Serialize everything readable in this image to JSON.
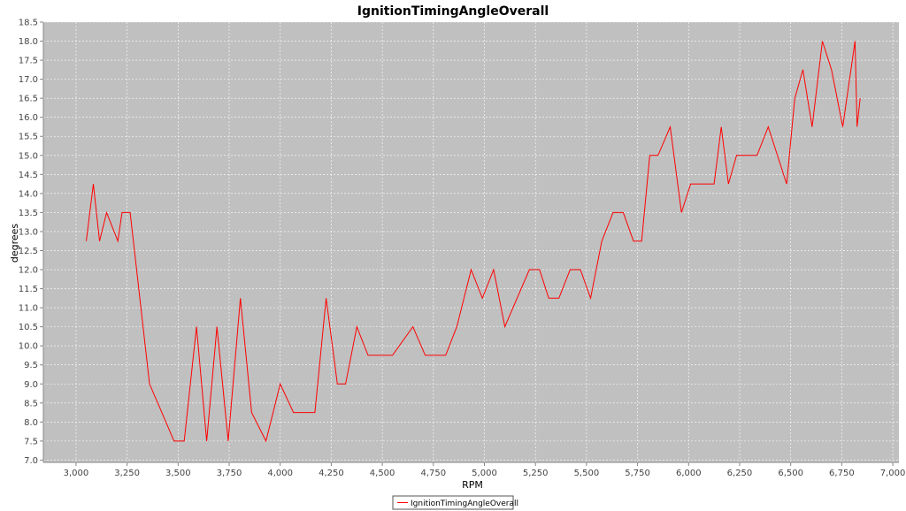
{
  "chart_data": {
    "type": "line",
    "title": "IgnitionTimingAngleOverall",
    "xlabel": "RPM",
    "ylabel": "degrees",
    "xlim": [
      2840,
      7030
    ],
    "ylim": [
      6.94,
      18.5
    ],
    "x_ticks": [
      3000,
      3250,
      3500,
      3750,
      4000,
      4250,
      4500,
      4750,
      5000,
      5250,
      5500,
      5750,
      6000,
      6250,
      6500,
      6750,
      7000
    ],
    "x_tick_labels": [
      "3,000",
      "3,250",
      "3,500",
      "3,750",
      "4,000",
      "4,250",
      "4,500",
      "4,750",
      "5,000",
      "5,250",
      "5,500",
      "5,750",
      "6,000",
      "6,250",
      "6,500",
      "6,750",
      "7,000"
    ],
    "y_ticks": [
      7.0,
      7.5,
      8.0,
      8.5,
      9.0,
      9.5,
      10.0,
      10.5,
      11.0,
      11.5,
      12.0,
      12.5,
      13.0,
      13.5,
      14.0,
      14.5,
      15.0,
      15.5,
      16.0,
      16.5,
      17.0,
      17.5,
      18.0,
      18.5
    ],
    "y_tick_labels": [
      "7.0",
      "7.5",
      "8.0",
      "8.5",
      "9.0",
      "9.5",
      "10.0",
      "10.5",
      "11.0",
      "11.5",
      "12.0",
      "12.5",
      "13.0",
      "13.5",
      "14.0",
      "14.5",
      "15.0",
      "15.5",
      "16.0",
      "16.5",
      "17.0",
      "17.5",
      "18.0",
      "18.5"
    ],
    "grid": true,
    "legend": "bottom-center",
    "colors": {
      "series": "#ff0000",
      "plot_background": "#c0c0c0",
      "grid": "#ffffff"
    },
    "series": [
      {
        "name": "IgnitionTimingAngleOverall",
        "x": [
          3050,
          3085,
          3115,
          3150,
          3205,
          3225,
          3265,
          3360,
          3420,
          3480,
          3530,
          3590,
          3640,
          3690,
          3745,
          3805,
          3860,
          3930,
          4000,
          4065,
          4170,
          4225,
          4280,
          4320,
          4375,
          4430,
          4550,
          4650,
          4710,
          4810,
          4865,
          4935,
          4990,
          5045,
          5100,
          5220,
          5270,
          5315,
          5365,
          5420,
          5470,
          5520,
          5575,
          5630,
          5680,
          5730,
          5770,
          5810,
          5850,
          5910,
          5965,
          6010,
          6060,
          6125,
          6160,
          6195,
          6235,
          6295,
          6335,
          6390,
          6480,
          6520,
          6560,
          6605,
          6655,
          6700,
          6755,
          6815,
          6825,
          6840
        ],
        "y": [
          12.75,
          14.25,
          12.75,
          13.5,
          12.75,
          13.5,
          13.5,
          9.0,
          8.25,
          7.5,
          7.5,
          10.5,
          7.5,
          10.5,
          7.5,
          11.25,
          8.25,
          7.5,
          9.0,
          8.25,
          8.25,
          11.25,
          9.0,
          9.0,
          10.5,
          9.75,
          9.75,
          10.5,
          9.75,
          9.75,
          10.5,
          12.0,
          11.25,
          12.0,
          10.5,
          12.0,
          12.0,
          11.25,
          11.25,
          12.0,
          12.0,
          11.25,
          12.75,
          13.5,
          13.5,
          12.75,
          12.75,
          15.0,
          15.0,
          15.75,
          13.5,
          14.25,
          14.25,
          14.25,
          15.75,
          14.25,
          15.0,
          15.0,
          15.0,
          15.75,
          14.25,
          16.5,
          17.25,
          15.75,
          18.0,
          17.25,
          15.75,
          18.0,
          15.75,
          16.5
        ]
      }
    ]
  }
}
